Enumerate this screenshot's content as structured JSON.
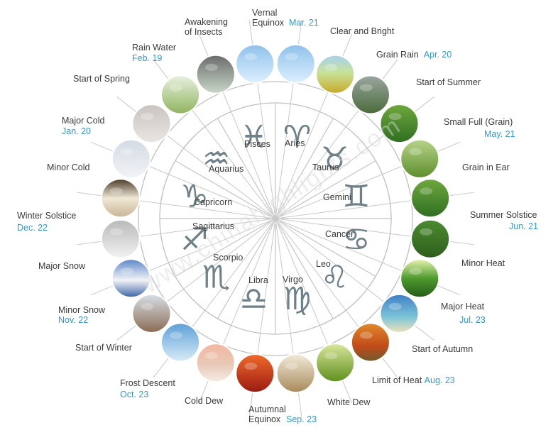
{
  "watermark": "www.chinahighlights.com",
  "colors": {
    "date": "#3399cc",
    "text": "#3a3a3a",
    "line": "#bfbfbf",
    "symbol": "#6e8088"
  },
  "terms": [
    {
      "name": "Vernal Equinox",
      "date": "Mar. 21"
    },
    {
      "name": "Clear and Bright",
      "date": ""
    },
    {
      "name": "Grain Rain",
      "date": "Apr. 20"
    },
    {
      "name": "Start of Summer",
      "date": ""
    },
    {
      "name": "Small Full (Grain)",
      "date": "May. 21"
    },
    {
      "name": "Grain in Ear",
      "date": ""
    },
    {
      "name": "Summer Solstice",
      "date": "Jun. 21"
    },
    {
      "name": "Minor Heat",
      "date": ""
    },
    {
      "name": "Major Heat",
      "date": "Jul. 23"
    },
    {
      "name": "Start of Autumn",
      "date": ""
    },
    {
      "name": "Limit of Heat",
      "date": "Aug. 23"
    },
    {
      "name": "White Dew",
      "date": ""
    },
    {
      "name": "Autumnal Equinox",
      "date": "Sep. 23"
    },
    {
      "name": "Cold Dew",
      "date": ""
    },
    {
      "name": "Frost Descent",
      "date": "Oct. 23"
    },
    {
      "name": "Start of Winter",
      "date": ""
    },
    {
      "name": "Minor Snow",
      "date": "Nov. 22"
    },
    {
      "name": "Major Snow",
      "date": ""
    },
    {
      "name": "Winter Solstice",
      "date": "Dec. 22"
    },
    {
      "name": "Minor Cold",
      "date": ""
    },
    {
      "name": "Major Cold",
      "date": "Jan. 20"
    },
    {
      "name": "Start of Spring",
      "date": ""
    },
    {
      "name": "Rain Water",
      "date": "Feb. 19"
    },
    {
      "name": "Awakening of Insects",
      "date": ""
    }
  ],
  "signs": [
    "Aries",
    "Taurus",
    "Gemini",
    "Cancer",
    "Leo",
    "Virgo",
    "Libra",
    "Scorpio",
    "Sagittarius",
    "Capricorn",
    "Aquarius",
    "Pisces"
  ]
}
